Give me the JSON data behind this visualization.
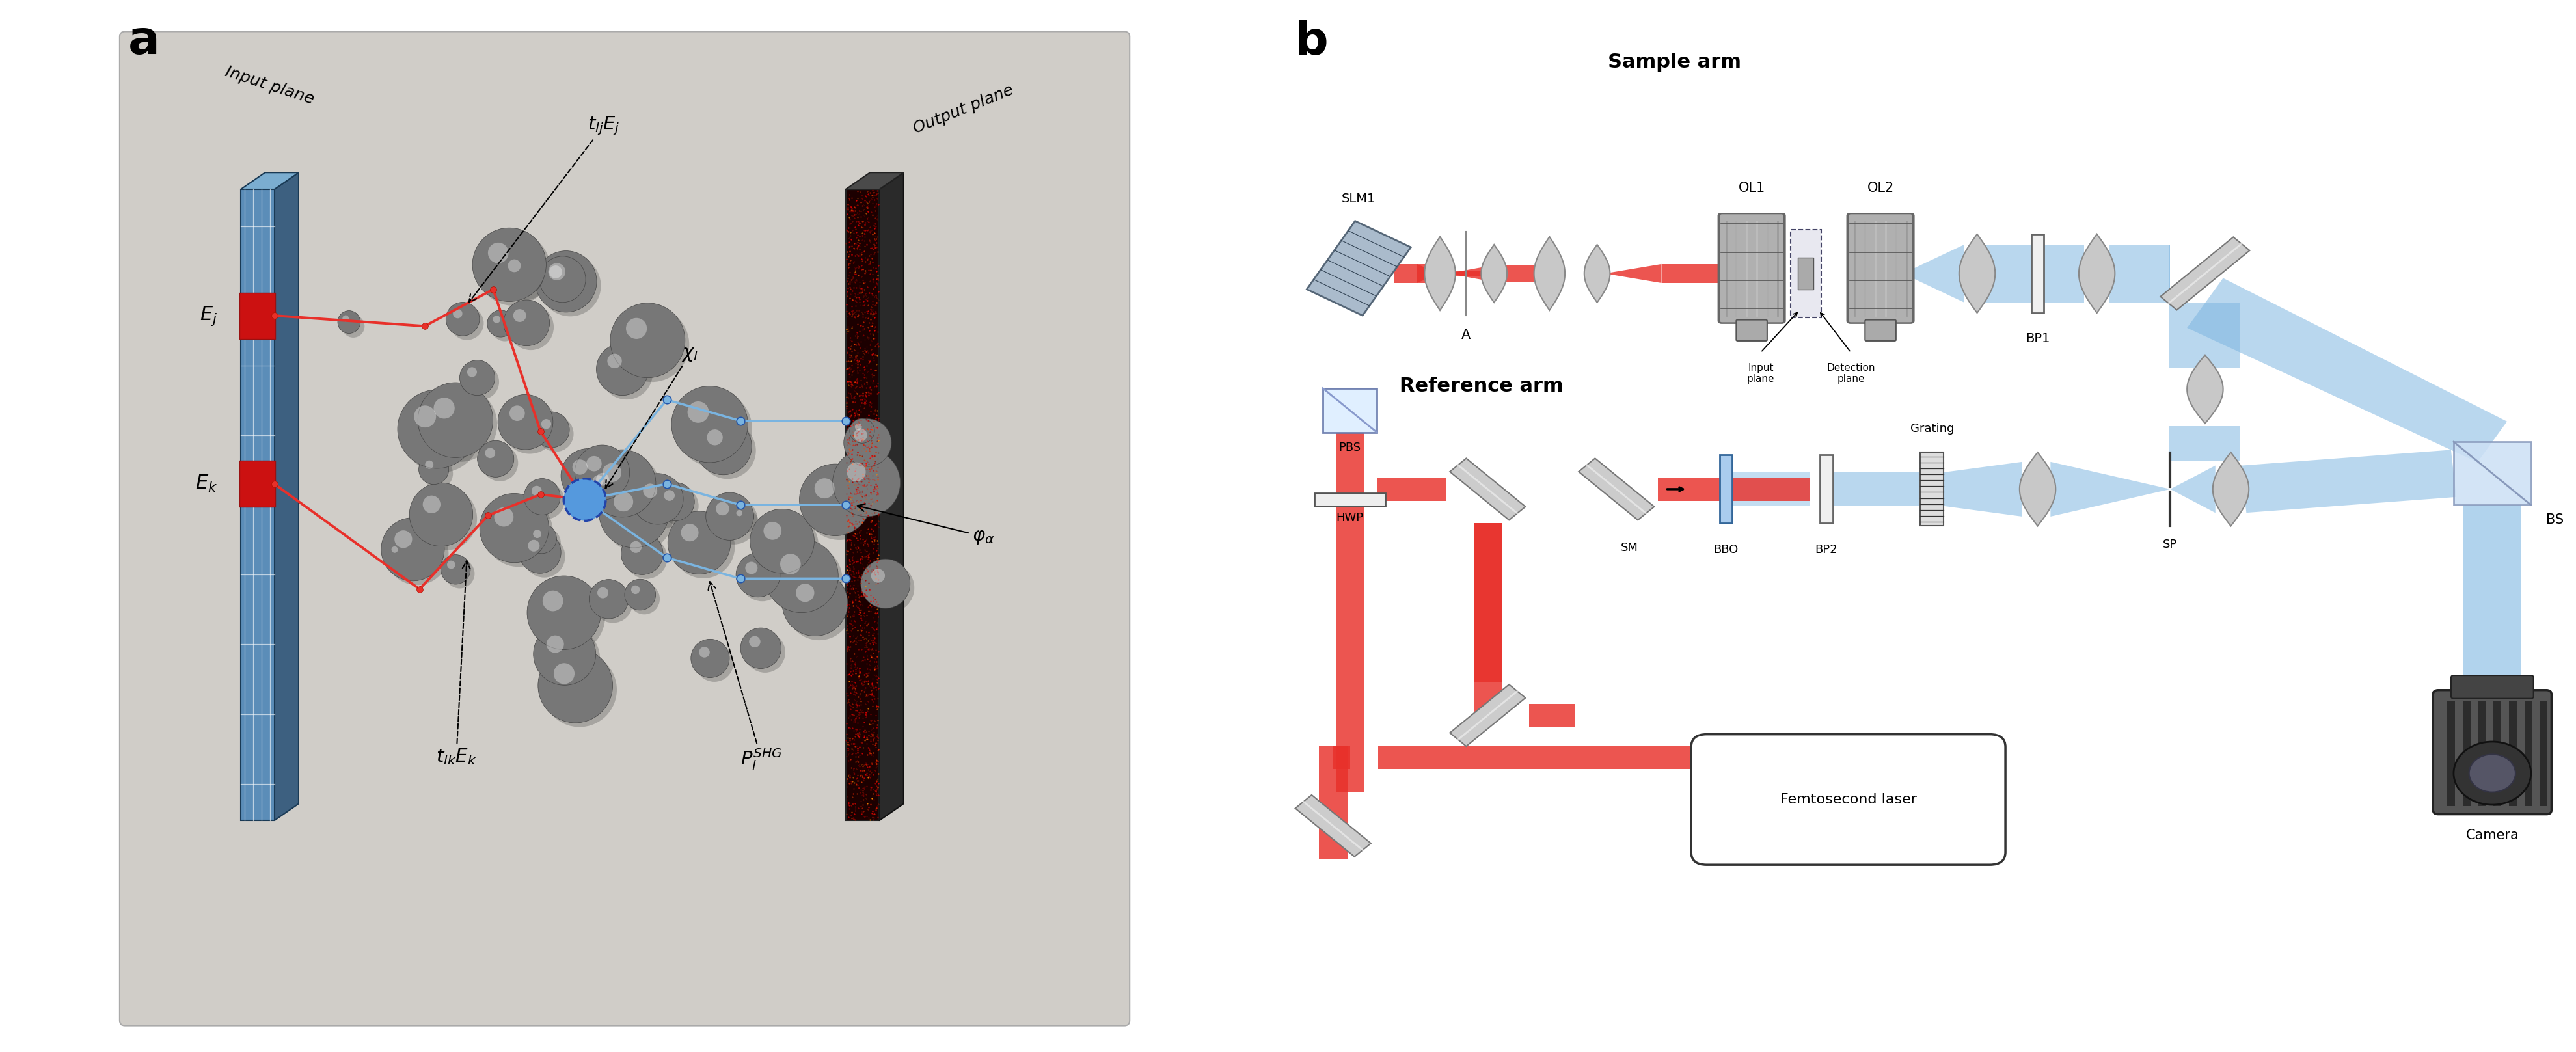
{
  "fig_width": 39.59,
  "fig_height": 16.17,
  "background_color": "#ffffff",
  "panel_a_bg": "#d0cdc8",
  "label_fontsize": 52,
  "label_fontweight": "bold",
  "colors": {
    "red_beam": "#e8302a",
    "blue_beam": "#7ab4e0",
    "lens_gray": "#c8c8c8",
    "lens_edge": "#888888",
    "obj_gray": "#aaaaaa",
    "mirror_gray": "#bbbbbb",
    "dark_gray": "#444444",
    "black": "#000000",
    "white": "#ffffff",
    "panel_border": "#aaaaaa",
    "beam_red_alpha": 0.85,
    "beam_blue_alpha": 0.55
  },
  "panel_a": {
    "label": "a",
    "bg_color": "#d0cdc8",
    "input_plane_label": "Input plane",
    "output_plane_label": "Output plane",
    "ej_label": "$E_j$",
    "ek_label": "$E_k$",
    "chi_l_label": "$\\chi_l$",
    "tlj_label": "$t_{lj}E_j$",
    "tlk_label": "$t_{lk}E_k$",
    "pshg_label": "$P_l^{SHG}$",
    "phi_label": "$\\varphi_\\alpha$"
  },
  "panel_b": {
    "label": "b",
    "sample_arm_label": "Sample arm",
    "ref_arm_label": "Reference arm",
    "slm1": "SLM1",
    "a_lbl": "A",
    "ol1": "OL1",
    "ol2": "OL2",
    "bp1": "BP1",
    "input_plane": "Input\nplane",
    "detection_plane": "Detection\nplane",
    "bbo": "BBO",
    "bp2": "BP2",
    "grating": "Grating",
    "sp": "SP",
    "bs": "BS",
    "pbs": "PBS",
    "hwp": "HWP",
    "sm": "SM",
    "camera": "Camera",
    "laser": "Femtosecond laser"
  }
}
